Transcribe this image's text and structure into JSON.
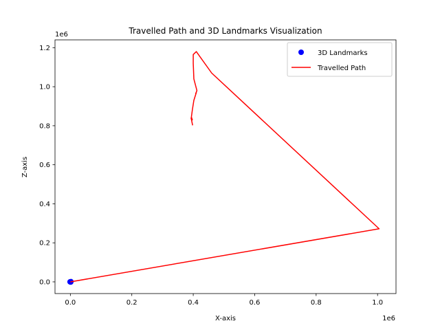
{
  "chart_data": {
    "type": "scatter",
    "title": "Travelled Path and 3D Landmarks Visualization",
    "xlabel": "X-axis",
    "ylabel": "Z-axis",
    "x_offset_label": "1e6",
    "y_offset_label": "1e6",
    "xlim": [
      -0.05,
      1.06
    ],
    "ylim": [
      -0.06,
      1.24
    ],
    "x_ticks": [
      0.0,
      0.2,
      0.4,
      0.6,
      0.8,
      1.0
    ],
    "x_tick_labels": [
      "0.0",
      "0.2",
      "0.4",
      "0.6",
      "0.8",
      "1.0"
    ],
    "y_ticks": [
      0.0,
      0.2,
      0.4,
      0.6,
      0.8,
      1.0,
      1.2
    ],
    "y_tick_labels": [
      "0.0",
      "0.2",
      "0.4",
      "0.6",
      "0.8",
      "1.0",
      "1.2"
    ],
    "grid": false,
    "legend_position": "top-right",
    "series": [
      {
        "name": "3D Landmarks",
        "kind": "scatter",
        "color": "#0000ff",
        "points": [
          [
            0.0,
            0.0
          ],
          [
            0.002,
            0.001
          ],
          [
            -0.001,
            0.0
          ],
          [
            0.001,
            -0.001
          ]
        ]
      },
      {
        "name": "Travelled Path",
        "kind": "line",
        "color": "#ff0000",
        "points": [
          [
            0.0,
            0.0
          ],
          [
            1.005,
            0.272
          ],
          [
            0.46,
            1.07
          ],
          [
            0.41,
            1.18
          ],
          [
            0.4,
            1.165
          ],
          [
            0.4,
            1.12
          ],
          [
            0.402,
            1.04
          ],
          [
            0.412,
            0.98
          ],
          [
            0.408,
            0.965
          ],
          [
            0.41,
            0.97
          ],
          [
            0.402,
            0.93
          ],
          [
            0.397,
            0.88
          ],
          [
            0.394,
            0.845
          ],
          [
            0.397,
            0.83
          ],
          [
            0.393,
            0.84
          ],
          [
            0.398,
            0.802
          ]
        ]
      }
    ]
  }
}
